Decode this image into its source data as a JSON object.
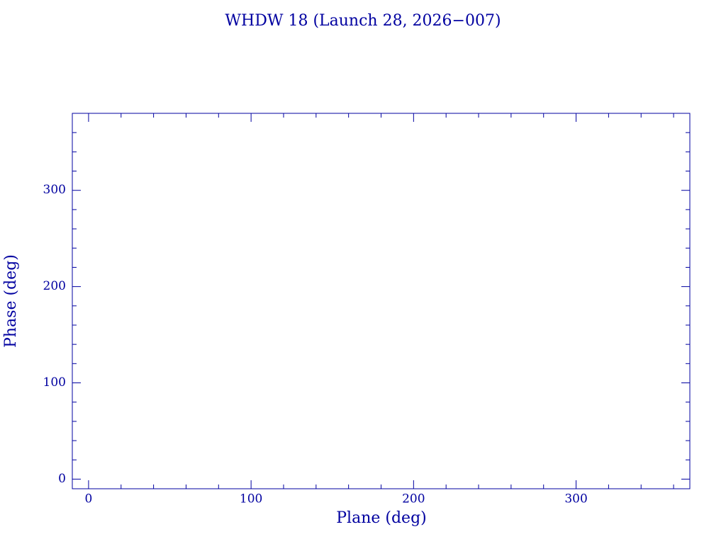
{
  "chart_data": {
    "type": "scatter",
    "title": "WHDW 18 (Launch 28, 2026−007)",
    "xlabel": "Plane (deg)",
    "ylabel": "Phase (deg)",
    "color": "#0000a0",
    "series": [],
    "xlim": [
      -10,
      370
    ],
    "xticks": [
      0,
      100,
      200,
      300
    ],
    "xminorticks": [
      20,
      40,
      60,
      80,
      120,
      140,
      160,
      180,
      220,
      240,
      260,
      280,
      320,
      340,
      360
    ],
    "ylim": [
      -10,
      380
    ],
    "yticks": [
      0,
      100,
      200,
      300
    ],
    "yminorticks": [
      20,
      40,
      60,
      80,
      120,
      140,
      160,
      180,
      220,
      240,
      260,
      280,
      320,
      340,
      360
    ],
    "grid": false
  }
}
